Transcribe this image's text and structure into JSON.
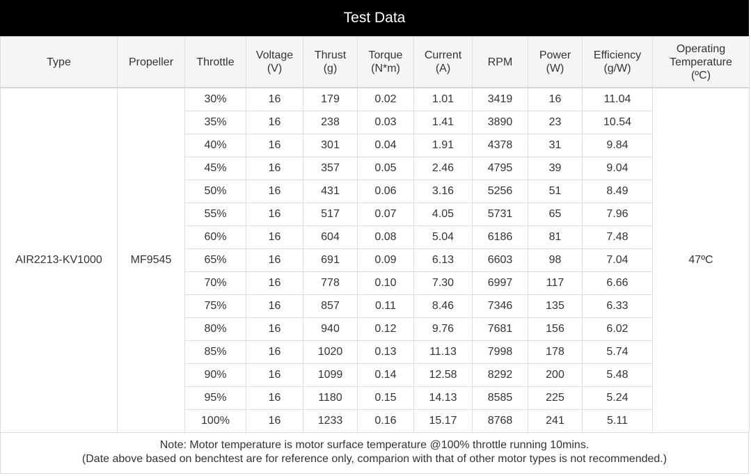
{
  "title": "Test Data",
  "headers": [
    {
      "lines": [
        "Type"
      ]
    },
    {
      "lines": [
        "Propeller"
      ]
    },
    {
      "lines": [
        "Throttle"
      ]
    },
    {
      "lines": [
        "Voltage",
        "(V)"
      ]
    },
    {
      "lines": [
        "Thrust",
        "(g)"
      ]
    },
    {
      "lines": [
        "Torque",
        "(N*m)"
      ]
    },
    {
      "lines": [
        "Current",
        "(A)"
      ]
    },
    {
      "lines": [
        "RPM"
      ]
    },
    {
      "lines": [
        "Power",
        "(W)"
      ]
    },
    {
      "lines": [
        "Efficiency",
        "(g/W)"
      ]
    },
    {
      "lines": [
        "Operating",
        "Temperature",
        "(ºC)"
      ]
    }
  ],
  "type": "AIR2213-KV1000",
  "propeller": "MF9545",
  "operating_temperature": "47ºC",
  "rows": [
    [
      "30%",
      "16",
      "179",
      "0.02",
      "1.01",
      "3419",
      "16",
      "11.04"
    ],
    [
      "35%",
      "16",
      "238",
      "0.03",
      "1.41",
      "3890",
      "23",
      "10.54"
    ],
    [
      "40%",
      "16",
      "301",
      "0.04",
      "1.91",
      "4378",
      "31",
      "9.84"
    ],
    [
      "45%",
      "16",
      "357",
      "0.05",
      "2.46",
      "4795",
      "39",
      "9.04"
    ],
    [
      "50%",
      "16",
      "431",
      "0.06",
      "3.16",
      "5256",
      "51",
      "8.49"
    ],
    [
      "55%",
      "16",
      "517",
      "0.07",
      "4.05",
      "5731",
      "65",
      "7.96"
    ],
    [
      "60%",
      "16",
      "604",
      "0.08",
      "5.04",
      "6186",
      "81",
      "7.48"
    ],
    [
      "65%",
      "16",
      "691",
      "0.09",
      "6.13",
      "6603",
      "98",
      "7.04"
    ],
    [
      "70%",
      "16",
      "778",
      "0.10",
      "7.30",
      "6997",
      "117",
      "6.66"
    ],
    [
      "75%",
      "16",
      "857",
      "0.11",
      "8.46",
      "7346",
      "135",
      "6.33"
    ],
    [
      "80%",
      "16",
      "940",
      "0.12",
      "9.76",
      "7681",
      "156",
      "6.02"
    ],
    [
      "85%",
      "16",
      "1020",
      "0.13",
      "11.13",
      "7998",
      "178",
      "5.74"
    ],
    [
      "90%",
      "16",
      "1099",
      "0.14",
      "12.58",
      "8292",
      "200",
      "5.48"
    ],
    [
      "95%",
      "16",
      "1180",
      "0.15",
      "14.13",
      "8585",
      "225",
      "5.24"
    ],
    [
      "100%",
      "16",
      "1233",
      "0.16",
      "15.17",
      "8768",
      "241",
      "5.11"
    ]
  ],
  "note": {
    "line1": "Note: Motor temperature is motor surface temperature @100% throttle running 10mins.",
    "line2": "(Date above based on benchtest are for reference only, comparion with that of other motor types is not recommended.)"
  }
}
